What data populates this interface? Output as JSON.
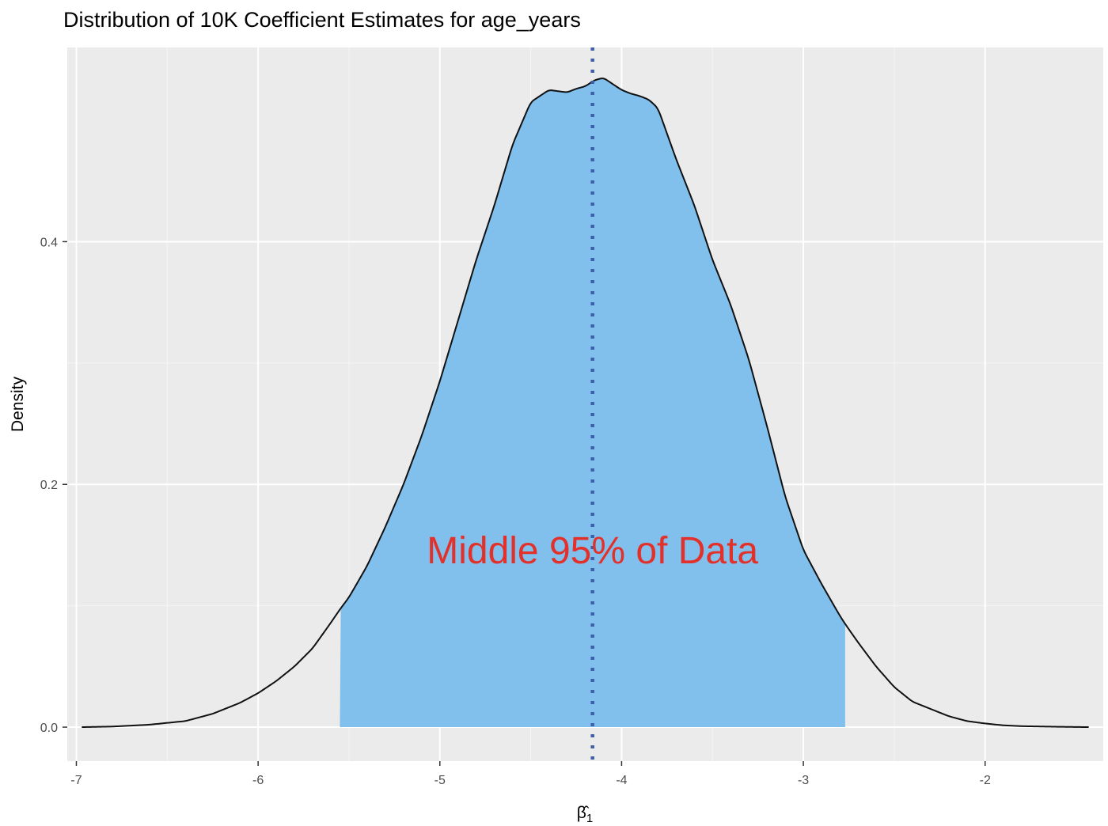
{
  "chart_data": {
    "type": "area",
    "title": "Distribution of 10K Coefficient Estimates for age_years",
    "xlabel": "β̂",
    "xlabel_subscript": "1",
    "ylabel": "Density",
    "xlim": [
      -7.05,
      -1.35
    ],
    "ylim": [
      -0.028,
      0.56
    ],
    "x_ticks": [
      {
        "value": -7,
        "label": "-7"
      },
      {
        "value": -6,
        "label": "-6"
      },
      {
        "value": -5,
        "label": "-5"
      },
      {
        "value": -4,
        "label": "-4"
      },
      {
        "value": -3,
        "label": "-3"
      },
      {
        "value": -2,
        "label": "-2"
      }
    ],
    "y_ticks": [
      {
        "value": 0.0,
        "label": "0.0"
      },
      {
        "value": 0.2,
        "label": "0.2"
      },
      {
        "value": 0.4,
        "label": "0.4"
      }
    ],
    "grid": true,
    "density_curve": {
      "x": [
        -6.97,
        -6.8,
        -6.6,
        -6.4,
        -6.25,
        -6.1,
        -6.0,
        -5.9,
        -5.8,
        -5.7,
        -5.6,
        -5.55,
        -5.5,
        -5.4,
        -5.3,
        -5.2,
        -5.1,
        -5.0,
        -4.9,
        -4.8,
        -4.7,
        -4.6,
        -4.5,
        -4.4,
        -4.3,
        -4.25,
        -4.2,
        -4.15,
        -4.1,
        -4.05,
        -4.0,
        -3.95,
        -3.9,
        -3.85,
        -3.8,
        -3.7,
        -3.6,
        -3.5,
        -3.4,
        -3.3,
        -3.2,
        -3.1,
        -3.0,
        -2.9,
        -2.8,
        -2.77,
        -2.7,
        -2.6,
        -2.5,
        -2.4,
        -2.3,
        -2.2,
        -2.1,
        -2.0,
        -1.9,
        -1.8,
        -1.6,
        -1.43
      ],
      "y": [
        0.0,
        0.0005,
        0.002,
        0.005,
        0.011,
        0.02,
        0.028,
        0.038,
        0.05,
        0.065,
        0.086,
        0.097,
        0.107,
        0.133,
        0.165,
        0.2,
        0.24,
        0.285,
        0.335,
        0.385,
        0.43,
        0.48,
        0.515,
        0.525,
        0.523,
        0.526,
        0.528,
        0.533,
        0.535,
        0.53,
        0.525,
        0.522,
        0.52,
        0.517,
        0.51,
        0.468,
        0.43,
        0.385,
        0.348,
        0.303,
        0.248,
        0.19,
        0.146,
        0.118,
        0.092,
        0.085,
        0.07,
        0.05,
        0.033,
        0.021,
        0.015,
        0.009,
        0.005,
        0.003,
        0.0015,
        0.0008,
        0.0003,
        0.0
      ]
    },
    "shaded_interval": {
      "from": -5.55,
      "to": -2.77,
      "label": "Middle 95% of Data"
    },
    "reference_line": {
      "x": -4.16,
      "style": "dotted"
    },
    "colors": {
      "panel_background": "#ebebeb",
      "grid_major": "#ffffff",
      "grid_minor": "#f5f5f5",
      "fill": "#81bfec",
      "curve": "#111111",
      "reference_line": "#3d5fa8",
      "annotation": "#e2302b"
    }
  }
}
